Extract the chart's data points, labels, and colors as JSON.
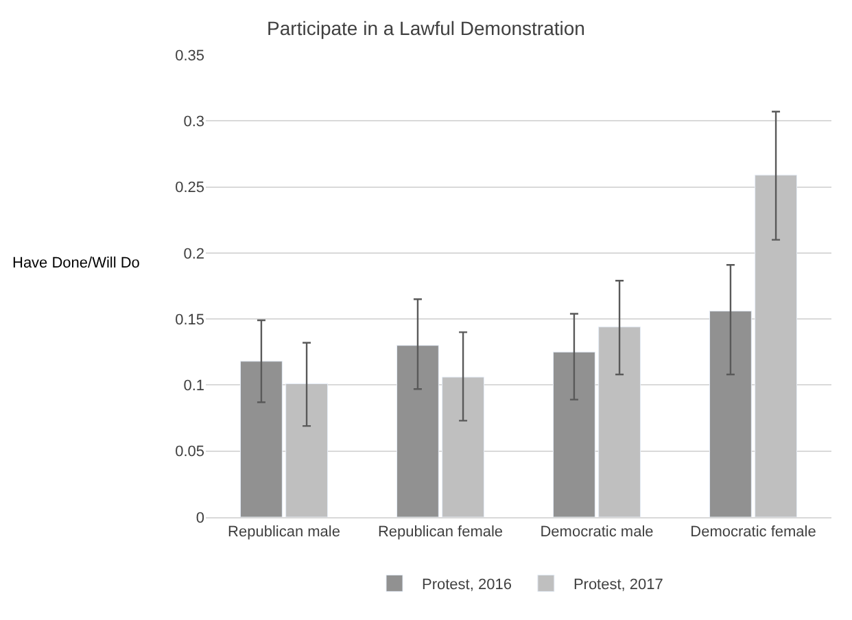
{
  "chart_data": {
    "type": "bar",
    "title": "Participate in a Lawful Demonstration",
    "ylabel": "Have Done/Will Do",
    "categories": [
      "Republican male",
      "Republican female",
      "Democratic male",
      "Democratic female"
    ],
    "series": [
      {
        "name": "Protest, 2016",
        "color": "#919191",
        "values": [
          0.118,
          0.13,
          0.125,
          0.156
        ],
        "errors": [
          [
            0.087,
            0.149
          ],
          [
            0.097,
            0.165
          ],
          [
            0.089,
            0.154
          ],
          [
            0.108,
            0.191
          ]
        ]
      },
      {
        "name": "Protest, 2017",
        "color": "#bfbfbf",
        "values": [
          0.101,
          0.106,
          0.144,
          0.259
        ],
        "errors": [
          [
            0.069,
            0.132
          ],
          [
            0.073,
            0.14
          ],
          [
            0.108,
            0.179
          ],
          [
            0.21,
            0.307
          ]
        ]
      }
    ],
    "ylim": [
      0,
      0.35
    ],
    "yticks": [
      0,
      0.05,
      0.1,
      0.15,
      0.2,
      0.25,
      0.3,
      0.35
    ],
    "grid": "y",
    "legend": "bottom"
  }
}
